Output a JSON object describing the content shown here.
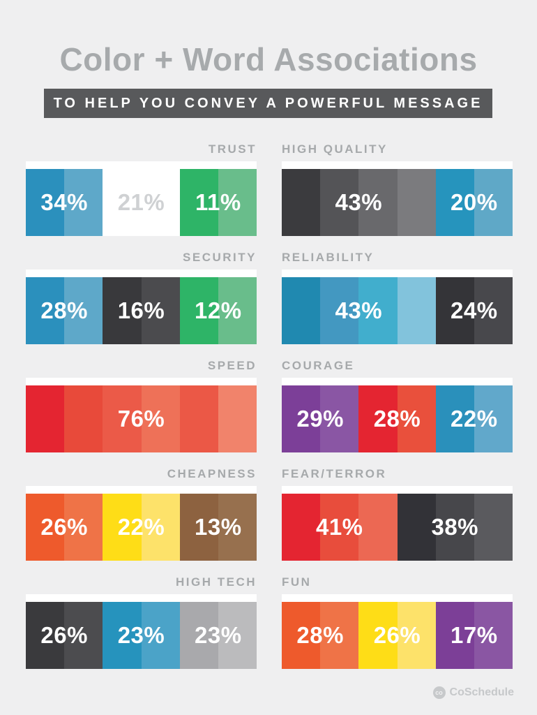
{
  "page": {
    "title": "Color + Word Associations",
    "subtitle": "TO HELP YOU CONVEY A POWERFUL MESSAGE",
    "background_color": "#efeff0",
    "title_color": "#a7aaac",
    "banner_bg": "#58595b",
    "banner_text_color": "#ffffff",
    "label_color": "#a6a9ab"
  },
  "footer": {
    "brand": "CoSchedule",
    "logo_icon_text": "co"
  },
  "associations": [
    {
      "label": "TRUST",
      "column": "left",
      "row": 1,
      "label_align": "right",
      "segments": [
        {
          "percent": "34%",
          "text_color": "#ffffff",
          "cells": [
            "#2b90bd",
            "#5ea8c9"
          ]
        },
        {
          "percent": "21%",
          "text_color": "#cfd1d3",
          "cells": [
            "#ffffff",
            "#ffffff"
          ]
        },
        {
          "percent": "11%",
          "text_color": "#ffffff",
          "cells": [
            "#2eb467",
            "#69bd8b"
          ]
        }
      ]
    },
    {
      "label": "HIGH QUALITY",
      "column": "right",
      "row": 1,
      "label_align": "left",
      "segments": [
        {
          "percent": "43%",
          "text_color": "#ffffff",
          "cells": [
            "#3b3b3e",
            "#545457",
            "#69696c",
            "#7b7b7e"
          ]
        },
        {
          "percent": "20%",
          "text_color": "#ffffff",
          "cells": [
            "#2694bd",
            "#5fa8c7"
          ]
        }
      ]
    },
    {
      "label": "SECURITY",
      "column": "left",
      "row": 2,
      "label_align": "right",
      "segments": [
        {
          "percent": "28%",
          "text_color": "#ffffff",
          "cells": [
            "#2b90bd",
            "#5ea8c9"
          ]
        },
        {
          "percent": "16%",
          "text_color": "#ffffff",
          "cells": [
            "#39393c",
            "#4b4b4e"
          ]
        },
        {
          "percent": "12%",
          "text_color": "#ffffff",
          "cells": [
            "#2eb467",
            "#69bd8b"
          ]
        }
      ]
    },
    {
      "label": "RELIABILITY",
      "column": "right",
      "row": 2,
      "label_align": "left",
      "segments": [
        {
          "percent": "43%",
          "text_color": "#ffffff",
          "cells": [
            "#2089b0",
            "#4398c1",
            "#41aecd",
            "#82c3dc"
          ]
        },
        {
          "percent": "24%",
          "text_color": "#ffffff",
          "cells": [
            "#343438",
            "#48484c"
          ]
        }
      ]
    },
    {
      "label": "SPEED",
      "column": "left",
      "row": 3,
      "label_align": "right",
      "segments": [
        {
          "percent": "76%",
          "text_color": "#ffffff",
          "cells": [
            "#e42531",
            "#e84a3a",
            "#eb5a48",
            "#ee7158",
            "#eb5846",
            "#f1836b"
          ]
        }
      ]
    },
    {
      "label": "COURAGE",
      "column": "right",
      "row": 3,
      "label_align": "left",
      "segments": [
        {
          "percent": "29%",
          "text_color": "#ffffff",
          "cells": [
            "#7c3f98",
            "#8a56a4"
          ]
        },
        {
          "percent": "28%",
          "text_color": "#ffffff",
          "cells": [
            "#e42531",
            "#e9503c"
          ]
        },
        {
          "percent": "22%",
          "text_color": "#ffffff",
          "cells": [
            "#2a90bb",
            "#61a8cb"
          ]
        }
      ]
    },
    {
      "label": "CHEAPNESS",
      "column": "left",
      "row": 4,
      "label_align": "right",
      "segments": [
        {
          "percent": "26%",
          "text_color": "#ffffff",
          "cells": [
            "#ee5a2c",
            "#ef7347"
          ]
        },
        {
          "percent": "22%",
          "text_color": "#ffffff",
          "cells": [
            "#fedd17",
            "#fde26a"
          ]
        },
        {
          "percent": "13%",
          "text_color": "#ffffff",
          "cells": [
            "#8d6240",
            "#97704e"
          ]
        }
      ]
    },
    {
      "label": "FEAR/TERROR",
      "column": "right",
      "row": 4,
      "label_align": "left",
      "segments": [
        {
          "percent": "41%",
          "text_color": "#ffffff",
          "cells": [
            "#e42531",
            "#e84d3c",
            "#ec6853"
          ]
        },
        {
          "percent": "38%",
          "text_color": "#ffffff",
          "cells": [
            "#323237",
            "#47474b",
            "#5a5a5e"
          ]
        }
      ]
    },
    {
      "label": "HIGH TECH",
      "column": "left",
      "row": 5,
      "label_align": "right",
      "segments": [
        {
          "percent": "26%",
          "text_color": "#ffffff",
          "cells": [
            "#3a3a3d",
            "#4c4c4f"
          ]
        },
        {
          "percent": "23%",
          "text_color": "#ffffff",
          "cells": [
            "#2693bd",
            "#4ba3c8"
          ]
        },
        {
          "percent": "23%",
          "text_color": "#ffffff",
          "cells": [
            "#a9a9ac",
            "#bbbbbd"
          ]
        }
      ]
    },
    {
      "label": "FUN",
      "column": "right",
      "row": 5,
      "label_align": "left",
      "segments": [
        {
          "percent": "28%",
          "text_color": "#ffffff",
          "cells": [
            "#ee5a2c",
            "#ef7347"
          ]
        },
        {
          "percent": "26%",
          "text_color": "#ffffff",
          "cells": [
            "#fedd17",
            "#fde26a"
          ]
        },
        {
          "percent": "17%",
          "text_color": "#ffffff",
          "cells": [
            "#7c3f97",
            "#8a56a3"
          ]
        }
      ]
    }
  ],
  "chart_data": {
    "type": "table",
    "title": "Color + Word Associations",
    "subtitle": "TO HELP YOU CONVEY A POWERFUL MESSAGE",
    "description": "Percent of people associating each color with each word; each bar is six equal swatch cells grouped by color",
    "rows": [
      {
        "word": "TRUST",
        "entries": [
          {
            "color": "blue",
            "percent": 34
          },
          {
            "color": "white",
            "percent": 21
          },
          {
            "color": "green",
            "percent": 11
          }
        ]
      },
      {
        "word": "HIGH QUALITY",
        "entries": [
          {
            "color": "black",
            "percent": 43
          },
          {
            "color": "blue",
            "percent": 20
          }
        ]
      },
      {
        "word": "SECURITY",
        "entries": [
          {
            "color": "blue",
            "percent": 28
          },
          {
            "color": "black",
            "percent": 16
          },
          {
            "color": "green",
            "percent": 12
          }
        ]
      },
      {
        "word": "RELIABILITY",
        "entries": [
          {
            "color": "blue",
            "percent": 43
          },
          {
            "color": "black",
            "percent": 24
          }
        ]
      },
      {
        "word": "SPEED",
        "entries": [
          {
            "color": "red",
            "percent": 76
          }
        ]
      },
      {
        "word": "COURAGE",
        "entries": [
          {
            "color": "purple",
            "percent": 29
          },
          {
            "color": "red",
            "percent": 28
          },
          {
            "color": "blue",
            "percent": 22
          }
        ]
      },
      {
        "word": "CHEAPNESS",
        "entries": [
          {
            "color": "orange",
            "percent": 26
          },
          {
            "color": "yellow",
            "percent": 22
          },
          {
            "color": "brown",
            "percent": 13
          }
        ]
      },
      {
        "word": "FEAR/TERROR",
        "entries": [
          {
            "color": "red",
            "percent": 41
          },
          {
            "color": "black",
            "percent": 38
          }
        ]
      },
      {
        "word": "HIGH TECH",
        "entries": [
          {
            "color": "black",
            "percent": 26
          },
          {
            "color": "blue",
            "percent": 23
          },
          {
            "color": "silver",
            "percent": 23
          }
        ]
      },
      {
        "word": "FUN",
        "entries": [
          {
            "color": "orange",
            "percent": 28
          },
          {
            "color": "yellow",
            "percent": 26
          },
          {
            "color": "purple",
            "percent": 17
          }
        ]
      }
    ]
  }
}
